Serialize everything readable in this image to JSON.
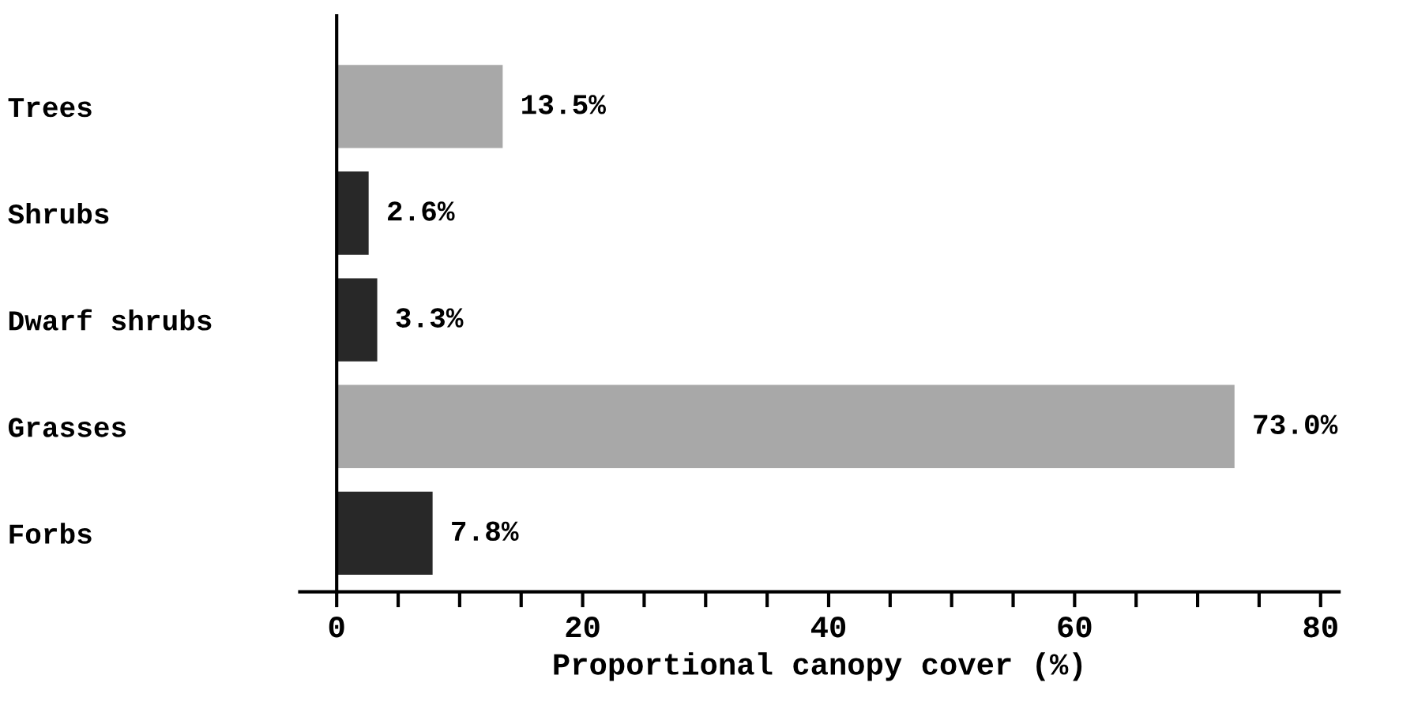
{
  "chart_data": {
    "type": "bar",
    "orientation": "horizontal",
    "xlabel": "Proportional canopy cover (%)",
    "categories": [
      "Trees",
      "Shrubs",
      "Dwarf shrubs",
      "Grasses",
      "Forbs"
    ],
    "values": [
      13.5,
      2.6,
      3.3,
      73.0,
      7.8
    ],
    "colors": [
      "#a8a8a8",
      "#282828",
      "#282828",
      "#a8a8a8",
      "#282828"
    ],
    "value_labels": [
      "13.5%",
      "2.6%",
      "3.3%",
      "73.0%",
      "7.8%"
    ],
    "xlim": [
      -3,
      81.5
    ],
    "xticks": [
      0,
      {
        "value": 5,
        "label": null
      },
      {
        "value": 10,
        "label": null
      },
      {
        "value": 15,
        "label": null
      },
      20,
      {
        "value": 25,
        "label": null
      },
      {
        "value": 30,
        "label": null
      },
      {
        "value": 35,
        "label": null
      },
      40,
      {
        "value": 45,
        "label": null
      },
      {
        "value": 50,
        "label": null
      },
      {
        "value": 55,
        "label": null
      },
      60,
      {
        "value": 65,
        "label": null
      },
      {
        "value": 70,
        "label": null
      },
      {
        "value": 75,
        "label": null
      },
      80
    ]
  }
}
